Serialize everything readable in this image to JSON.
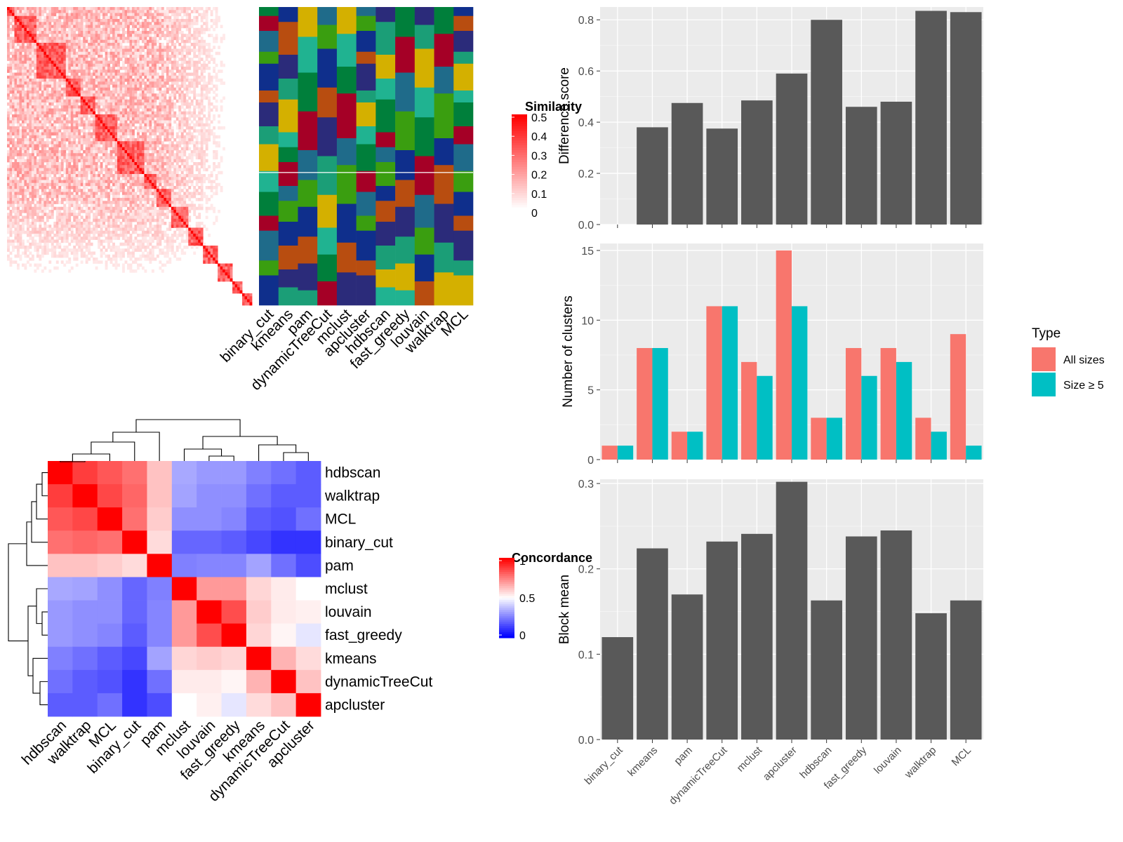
{
  "methods": [
    "binary_cut",
    "kmeans",
    "pam",
    "dynamicTreeCut",
    "mclust",
    "apcluster",
    "hdbscan",
    "fast_greedy",
    "louvain",
    "walktrap",
    "MCL"
  ],
  "similarity_legend": {
    "title": "Similarity",
    "ticks": [
      "0.5",
      "0.4",
      "0.3",
      "0.2",
      "0.1",
      "0"
    ]
  },
  "concordance_legend": {
    "title": "Concordance",
    "ticks": [
      "1",
      "0.5",
      "0"
    ]
  },
  "colors": {
    "panel_bg": "#ebebeb",
    "bar": "#595959",
    "all_sizes": "#f8766d",
    "size_ge5": "#00bfc4",
    "heat_high": "#ff0000",
    "heat_low": "#0000ff"
  },
  "chart_data": [
    {
      "type": "heatmap",
      "title": "",
      "legend_title": "Similarity",
      "value_range": [
        0,
        0.5
      ],
      "note": "term-term similarity matrix, values not individually labeled"
    },
    {
      "type": "heatmap",
      "title": "",
      "x": [
        "binary_cut",
        "kmeans",
        "pam",
        "dynamicTreeCut",
        "mclust",
        "apcluster",
        "hdbscan",
        "fast_greedy",
        "louvain",
        "walktrap",
        "MCL"
      ],
      "note": "categorical cluster assignment per method"
    },
    {
      "type": "heatmap",
      "title": "",
      "legend_title": "Concordance",
      "value_range": [
        0,
        1
      ],
      "rows": [
        "hdbscan",
        "walktrap",
        "MCL",
        "binary_cut",
        "pam",
        "mclust",
        "louvain",
        "fast_greedy",
        "kmeans",
        "dynamicTreeCut",
        "apcluster"
      ],
      "cols": [
        "hdbscan",
        "walktrap",
        "MCL",
        "binary_cut",
        "pam",
        "mclust",
        "louvain",
        "fast_greedy",
        "kmeans",
        "dynamicTreeCut",
        "apcluster"
      ],
      "values": [
        [
          1.0,
          0.88,
          0.83,
          0.78,
          0.62,
          0.33,
          0.3,
          0.3,
          0.25,
          0.22,
          0.18
        ],
        [
          0.88,
          1.0,
          0.86,
          0.8,
          0.62,
          0.32,
          0.28,
          0.28,
          0.22,
          0.18,
          0.18
        ],
        [
          0.83,
          0.86,
          1.0,
          0.78,
          0.6,
          0.28,
          0.28,
          0.26,
          0.18,
          0.16,
          0.22
        ],
        [
          0.78,
          0.8,
          0.78,
          1.0,
          0.57,
          0.2,
          0.2,
          0.18,
          0.14,
          0.1,
          0.1
        ],
        [
          0.62,
          0.62,
          0.6,
          0.57,
          1.0,
          0.25,
          0.26,
          0.26,
          0.32,
          0.22,
          0.15
        ],
        [
          0.33,
          0.32,
          0.28,
          0.2,
          0.25,
          1.0,
          0.7,
          0.7,
          0.58,
          0.54,
          0.5
        ],
        [
          0.3,
          0.28,
          0.28,
          0.2,
          0.26,
          0.7,
          1.0,
          0.85,
          0.6,
          0.54,
          0.53
        ],
        [
          0.3,
          0.28,
          0.26,
          0.18,
          0.26,
          0.7,
          0.85,
          1.0,
          0.58,
          0.52,
          0.45
        ],
        [
          0.25,
          0.22,
          0.18,
          0.14,
          0.32,
          0.58,
          0.6,
          0.58,
          1.0,
          0.65,
          0.57
        ],
        [
          0.22,
          0.18,
          0.16,
          0.1,
          0.22,
          0.54,
          0.54,
          0.52,
          0.65,
          1.0,
          0.62
        ],
        [
          0.18,
          0.18,
          0.22,
          0.1,
          0.15,
          0.5,
          0.53,
          0.45,
          0.57,
          0.62,
          1.0
        ]
      ]
    },
    {
      "type": "bar",
      "title": "",
      "xlabel": "",
      "ylabel": "Difference score",
      "ylim": [
        0,
        0.85
      ],
      "yticks": [
        0.0,
        0.2,
        0.4,
        0.6,
        0.8
      ],
      "ytick_labels": [
        "0.0",
        "0.2",
        "0.4",
        "0.6",
        "0.8"
      ],
      "categories": [
        "binary_cut",
        "kmeans",
        "pam",
        "dynamicTreeCut",
        "mclust",
        "apcluster",
        "hdbscan",
        "fast_greedy",
        "louvain",
        "walktrap",
        "MCL"
      ],
      "values": [
        0.0,
        0.38,
        0.475,
        0.375,
        0.485,
        0.59,
        0.8,
        0.46,
        0.48,
        0.835,
        0.83
      ],
      "grid": true
    },
    {
      "type": "bar",
      "title": "",
      "xlabel": "",
      "ylabel": "Number of clusters",
      "ylim": [
        0,
        15.5
      ],
      "yticks": [
        0,
        5,
        10,
        15
      ],
      "ytick_labels": [
        "0",
        "5",
        "10",
        "15"
      ],
      "categories": [
        "binary_cut",
        "kmeans",
        "pam",
        "dynamicTreeCut",
        "mclust",
        "apcluster",
        "hdbscan",
        "fast_greedy",
        "louvain",
        "walktrap",
        "MCL"
      ],
      "legend_title": "Type",
      "legend_position": "right",
      "series": [
        {
          "name": "All sizes",
          "values": [
            1,
            8,
            2,
            11,
            7,
            15,
            3,
            8,
            8,
            3,
            9
          ]
        },
        {
          "name": "Size ≥ 5",
          "values": [
            1,
            8,
            2,
            11,
            6,
            11,
            3,
            6,
            7,
            2,
            1
          ]
        }
      ],
      "grid": true
    },
    {
      "type": "bar",
      "title": "",
      "xlabel": "",
      "ylabel": "Block mean",
      "ylim": [
        0,
        0.305
      ],
      "yticks": [
        0.0,
        0.1,
        0.2,
        0.3
      ],
      "ytick_labels": [
        "0.0",
        "0.1",
        "0.2",
        "0.3"
      ],
      "categories": [
        "binary_cut",
        "kmeans",
        "pam",
        "dynamicTreeCut",
        "mclust",
        "apcluster",
        "hdbscan",
        "fast_greedy",
        "louvain",
        "walktrap",
        "MCL"
      ],
      "values": [
        0.12,
        0.224,
        0.17,
        0.232,
        0.241,
        0.302,
        0.163,
        0.238,
        0.245,
        0.148,
        0.163
      ],
      "grid": true
    }
  ]
}
